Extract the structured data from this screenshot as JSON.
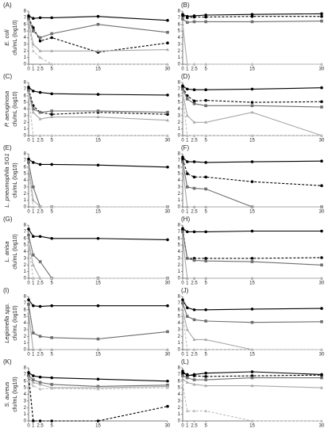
{
  "chart_data": [
    {
      "type": "line",
      "panel": "(A)",
      "species": "E. coli",
      "ylabel": "cfu/mL (log10)",
      "x": [
        0,
        1,
        2.5,
        5,
        15,
        30
      ],
      "xlim": [
        0,
        30
      ],
      "xticks": [
        0,
        1,
        2.5,
        5,
        15,
        30
      ],
      "ylim": [
        0,
        8
      ],
      "yticks": [
        0,
        1,
        2,
        3,
        4,
        5,
        6,
        7,
        8
      ],
      "series": [
        {
          "color": "#000000",
          "dashed": false,
          "marker": "circle",
          "values": [
            7.3,
            6.9,
            7.0,
            7.0,
            7.2,
            6.6
          ]
        },
        {
          "color": "#000000",
          "dashed": true,
          "marker": "circle",
          "values": [
            7.0,
            5.5,
            3.5,
            4.0,
            1.8,
            3.2
          ]
        },
        {
          "color": "#6e6e6e",
          "dashed": false,
          "marker": "square",
          "values": [
            6.8,
            5.0,
            4.0,
            4.6,
            6.0,
            4.8
          ]
        },
        {
          "color": "#a8a8a8",
          "dashed": false,
          "marker": "triangle",
          "values": [
            6.5,
            3.0,
            2.0,
            2.0,
            2.0,
            2.2
          ]
        },
        {
          "color": "#bdbdbd",
          "dashed": true,
          "marker": "triangle",
          "values": [
            6.3,
            2.0,
            1.0,
            0,
            0,
            0
          ]
        }
      ]
    },
    {
      "type": "line",
      "panel": "(B)",
      "x": [
        0,
        1,
        2.5,
        5,
        15,
        30
      ],
      "xlim": [
        0,
        30
      ],
      "xticks": [
        0,
        1,
        2.5,
        5,
        15,
        30
      ],
      "ylim": [
        0,
        8
      ],
      "yticks": [
        0,
        1,
        2,
        3,
        4,
        5,
        6,
        7,
        8
      ],
      "series": [
        {
          "color": "#000000",
          "dashed": false,
          "marker": "circle",
          "values": [
            7.5,
            7.2,
            7.3,
            7.4,
            7.5,
            7.6
          ]
        },
        {
          "color": "#000000",
          "dashed": true,
          "marker": "circle",
          "values": [
            7.3,
            7.0,
            7.1,
            7.1,
            7.2,
            7.2
          ]
        },
        {
          "color": "#6e6e6e",
          "dashed": false,
          "marker": "square",
          "values": [
            6.8,
            6.3,
            6.4,
            6.4,
            6.4,
            6.5
          ]
        },
        {
          "color": "#a8a8a8",
          "dashed": false,
          "marker": "triangle",
          "values": [
            6.0,
            0,
            0,
            0,
            0,
            0
          ]
        },
        {
          "color": "#bdbdbd",
          "dashed": true,
          "marker": "triangle",
          "values": [
            5.5,
            0,
            0,
            0,
            0,
            0
          ]
        }
      ]
    },
    {
      "type": "line",
      "panel": "(C)",
      "species": "P. aeruginosa",
      "ylabel": "cfu/mL (log10)",
      "x": [
        0,
        1,
        2.5,
        5,
        15,
        30
      ],
      "xlim": [
        0,
        30
      ],
      "xticks": [
        0,
        1,
        2.5,
        5,
        15,
        30
      ],
      "ylim": [
        0,
        8
      ],
      "yticks": [
        0,
        1,
        2,
        3,
        4,
        5,
        6,
        7,
        8
      ],
      "series": [
        {
          "color": "#000000",
          "dashed": false,
          "marker": "circle",
          "values": [
            7.3,
            6.7,
            6.5,
            6.3,
            6.2,
            6.1
          ]
        },
        {
          "color": "#000000",
          "dashed": true,
          "marker": "circle",
          "values": [
            7.0,
            4.5,
            3.5,
            3.2,
            3.5,
            3.2
          ]
        },
        {
          "color": "#6e6e6e",
          "dashed": false,
          "marker": "square",
          "values": [
            6.8,
            4.0,
            3.5,
            3.7,
            3.7,
            3.5
          ]
        },
        {
          "color": "#a8a8a8",
          "dashed": false,
          "marker": "triangle",
          "values": [
            6.5,
            3.5,
            2.5,
            2.8,
            2.8,
            2.3
          ]
        },
        {
          "color": "#bdbdbd",
          "dashed": true,
          "marker": "triangle",
          "values": [
            6.0,
            0,
            0,
            0,
            0,
            0
          ]
        }
      ]
    },
    {
      "type": "line",
      "panel": "(D)",
      "x": [
        0,
        1,
        2.5,
        5,
        15,
        30
      ],
      "xlim": [
        0,
        30
      ],
      "xticks": [
        0,
        1,
        2.5,
        5,
        15,
        30
      ],
      "ylim": [
        0,
        8
      ],
      "yticks": [
        0,
        1,
        2,
        3,
        4,
        5,
        6,
        7,
        8
      ],
      "series": [
        {
          "color": "#000000",
          "dashed": false,
          "marker": "circle",
          "values": [
            7.5,
            7.0,
            6.9,
            6.9,
            7.0,
            7.2
          ]
        },
        {
          "color": "#000000",
          "dashed": true,
          "marker": "circle",
          "values": [
            7.3,
            6.0,
            5.2,
            5.3,
            5.0,
            5.1
          ]
        },
        {
          "color": "#6e6e6e",
          "dashed": false,
          "marker": "square",
          "values": [
            7.0,
            5.5,
            4.8,
            4.5,
            4.5,
            4.3
          ]
        },
        {
          "color": "#a8a8a8",
          "dashed": false,
          "marker": "triangle",
          "values": [
            6.5,
            3.0,
            2.0,
            2.0,
            3.5,
            0
          ]
        },
        {
          "color": "#bdbdbd",
          "dashed": true,
          "marker": "triangle",
          "values": [
            6.0,
            0,
            0,
            0,
            0,
            0
          ]
        }
      ]
    },
    {
      "type": "line",
      "panel": "(E)",
      "species": "L. pneumophila SG1",
      "ylabel": "cfu/mL (log10)",
      "x": [
        0,
        1,
        2.5,
        5,
        15,
        30
      ],
      "xlim": [
        0,
        30
      ],
      "xticks": [
        0,
        1,
        2.5,
        5,
        15,
        30
      ],
      "ylim": [
        0,
        8
      ],
      "yticks": [
        0,
        1,
        2,
        3,
        4,
        5,
        6,
        7,
        8
      ],
      "series": [
        {
          "color": "#000000",
          "dashed": false,
          "marker": "circle",
          "values": [
            7.2,
            6.7,
            6.4,
            6.4,
            6.3,
            6.0
          ]
        },
        {
          "color": "#6e6e6e",
          "dashed": false,
          "marker": "square",
          "values": [
            6.7,
            3.0,
            0,
            0,
            0,
            0
          ]
        },
        {
          "color": "#a8a8a8",
          "dashed": false,
          "marker": "triangle",
          "values": [
            6.0,
            1.0,
            0,
            0,
            0,
            0
          ]
        },
        {
          "color": "#bdbdbd",
          "dashed": true,
          "marker": "triangle",
          "values": [
            5.5,
            0,
            0,
            0,
            0,
            0
          ]
        }
      ]
    },
    {
      "type": "line",
      "panel": "(F)",
      "x": [
        0,
        1,
        2.5,
        5,
        15,
        30
      ],
      "xlim": [
        0,
        30
      ],
      "xticks": [
        0,
        1,
        2.5,
        5,
        15,
        30
      ],
      "ylim": [
        0,
        8
      ],
      "yticks": [
        0,
        1,
        2,
        3,
        4,
        5,
        6,
        7,
        8
      ],
      "series": [
        {
          "color": "#000000",
          "dashed": false,
          "marker": "circle",
          "values": [
            7.5,
            6.8,
            6.8,
            6.7,
            6.8,
            6.9
          ]
        },
        {
          "color": "#000000",
          "dashed": true,
          "marker": "circle",
          "values": [
            7.2,
            5.0,
            4.5,
            4.5,
            3.8,
            3.2
          ]
        },
        {
          "color": "#6e6e6e",
          "dashed": false,
          "marker": "square",
          "values": [
            6.8,
            3.0,
            2.8,
            2.7,
            0,
            0
          ]
        },
        {
          "color": "#a8a8a8",
          "dashed": false,
          "marker": "triangle",
          "values": [
            6.0,
            0,
            0,
            0,
            0,
            0
          ]
        }
      ]
    },
    {
      "type": "line",
      "panel": "(G)",
      "species": "L. anisa",
      "ylabel": "cfu/mL (log10)",
      "x": [
        0,
        1,
        2.5,
        5,
        15,
        30
      ],
      "xlim": [
        0,
        30
      ],
      "xticks": [
        0,
        1,
        2.5,
        5,
        15,
        30
      ],
      "ylim": [
        0,
        8
      ],
      "yticks": [
        0,
        1,
        2,
        3,
        4,
        5,
        6,
        7,
        8
      ],
      "series": [
        {
          "color": "#000000",
          "dashed": false,
          "marker": "circle",
          "values": [
            7.4,
            6.3,
            6.3,
            6.0,
            6.0,
            5.8
          ]
        },
        {
          "color": "#6e6e6e",
          "dashed": false,
          "marker": "square",
          "values": [
            6.5,
            3.5,
            2.5,
            0,
            0,
            0
          ]
        },
        {
          "color": "#a8a8a8",
          "dashed": false,
          "marker": "triangle",
          "values": [
            5.5,
            2.0,
            0,
            0,
            0,
            0
          ]
        },
        {
          "color": "#bdbdbd",
          "dashed": true,
          "marker": "triangle",
          "values": [
            5.0,
            0,
            0,
            0,
            0,
            0
          ]
        }
      ]
    },
    {
      "type": "line",
      "panel": "(H)",
      "x": [
        0,
        1,
        2.5,
        5,
        15,
        30
      ],
      "xlim": [
        0,
        30
      ],
      "xticks": [
        0,
        1,
        2.5,
        5,
        15,
        30
      ],
      "ylim": [
        0,
        8
      ],
      "yticks": [
        0,
        1,
        2,
        3,
        4,
        5,
        6,
        7,
        8
      ],
      "series": [
        {
          "color": "#000000",
          "dashed": false,
          "marker": "circle",
          "values": [
            7.5,
            7.0,
            7.0,
            7.0,
            7.1,
            7.1
          ]
        },
        {
          "color": "#000000",
          "dashed": true,
          "marker": "circle",
          "values": [
            7.3,
            3.0,
            3.0,
            3.0,
            3.0,
            3.1
          ]
        },
        {
          "color": "#6e6e6e",
          "dashed": false,
          "marker": "square",
          "values": [
            7.0,
            3.0,
            2.7,
            2.6,
            2.5,
            2.0
          ]
        },
        {
          "color": "#a8a8a8",
          "dashed": false,
          "marker": "triangle",
          "values": [
            6.0,
            0,
            0,
            0,
            0,
            0
          ]
        }
      ]
    },
    {
      "type": "line",
      "panel": "(I)",
      "species": "Legionella spp.",
      "ylabel": "cfu/mL (log10)",
      "x": [
        0,
        1,
        2.5,
        5,
        15,
        30
      ],
      "xlim": [
        0,
        30
      ],
      "xticks": [
        0,
        1,
        2.5,
        5,
        15,
        30
      ],
      "ylim": [
        0,
        8
      ],
      "yticks": [
        0,
        1,
        2,
        3,
        4,
        5,
        6,
        7,
        8
      ],
      "series": [
        {
          "color": "#000000",
          "dashed": false,
          "marker": "circle",
          "values": [
            7.5,
            6.6,
            6.5,
            6.6,
            6.6,
            6.6
          ]
        },
        {
          "color": "#6e6e6e",
          "dashed": false,
          "marker": "square",
          "values": [
            6.8,
            2.5,
            2.0,
            1.8,
            1.6,
            2.7
          ]
        },
        {
          "color": "#a8a8a8",
          "dashed": false,
          "marker": "triangle",
          "values": [
            5.5,
            0,
            0,
            0,
            0,
            0
          ]
        }
      ]
    },
    {
      "type": "line",
      "panel": "(J)",
      "x": [
        0,
        1,
        2.5,
        5,
        15,
        30
      ],
      "xlim": [
        0,
        30
      ],
      "xticks": [
        0,
        1,
        2.5,
        5,
        15,
        30
      ],
      "ylim": [
        0,
        8
      ],
      "yticks": [
        0,
        1,
        2,
        3,
        4,
        5,
        6,
        7,
        8
      ],
      "series": [
        {
          "color": "#000000",
          "dashed": false,
          "marker": "circle",
          "values": [
            7.5,
            6.3,
            6.0,
            6.0,
            6.1,
            6.2
          ]
        },
        {
          "color": "#6e6e6e",
          "dashed": false,
          "marker": "square",
          "values": [
            7.0,
            5.0,
            4.5,
            4.3,
            4.1,
            4.2
          ]
        },
        {
          "color": "#a8a8a8",
          "dashed": false,
          "marker": "triangle",
          "values": [
            6.0,
            3.0,
            1.5,
            1.5,
            0,
            0
          ]
        },
        {
          "color": "#bdbdbd",
          "dashed": true,
          "marker": "triangle",
          "values": [
            5.5,
            0,
            0,
            0,
            0,
            0
          ]
        }
      ]
    },
    {
      "type": "line",
      "panel": "(K)",
      "species": "S. aureus",
      "ylabel": "cfu/mL (log10)",
      "x": [
        0,
        1,
        2.5,
        5,
        15,
        30
      ],
      "xlim": [
        0,
        30
      ],
      "xticks": [
        0,
        1,
        2.5,
        5,
        15,
        30
      ],
      "ylim": [
        0,
        8
      ],
      "yticks": [
        0,
        1,
        2,
        3,
        4,
        5,
        6,
        7,
        8
      ],
      "series": [
        {
          "color": "#000000",
          "dashed": false,
          "marker": "circle",
          "values": [
            7.3,
            6.8,
            6.6,
            6.5,
            6.3,
            6.0
          ]
        },
        {
          "color": "#000000",
          "dashed": true,
          "marker": "circle",
          "values": [
            6.9,
            0,
            0,
            0,
            0,
            2.2
          ]
        },
        {
          "color": "#6e6e6e",
          "dashed": false,
          "marker": "square",
          "values": [
            6.8,
            6.2,
            5.8,
            5.5,
            5.2,
            5.4
          ]
        },
        {
          "color": "#a8a8a8",
          "dashed": false,
          "marker": "triangle",
          "values": [
            6.5,
            5.8,
            5.5,
            5.0,
            5.0,
            5.2
          ]
        },
        {
          "color": "#bdbdbd",
          "dashed": true,
          "marker": "triangle",
          "values": [
            6.0,
            5.3,
            4.8,
            4.9,
            4.8,
            5.0
          ]
        }
      ]
    },
    {
      "type": "line",
      "panel": "(L)",
      "x": [
        0,
        1,
        2.5,
        5,
        15,
        30
      ],
      "xlim": [
        0,
        30
      ],
      "xticks": [
        0,
        1,
        2.5,
        5,
        15,
        30
      ],
      "ylim": [
        0,
        8
      ],
      "yticks": [
        0,
        1,
        2,
        3,
        4,
        5,
        6,
        7,
        8
      ],
      "series": [
        {
          "color": "#000000",
          "dashed": false,
          "marker": "circle",
          "values": [
            7.5,
            6.8,
            7.0,
            7.2,
            7.4,
            7.0
          ]
        },
        {
          "color": "#000000",
          "dashed": true,
          "marker": "circle",
          "values": [
            7.2,
            7.0,
            6.8,
            6.7,
            6.8,
            6.9
          ]
        },
        {
          "color": "#6e6e6e",
          "dashed": false,
          "marker": "square",
          "values": [
            6.8,
            6.5,
            6.2,
            6.2,
            6.5,
            6.5
          ]
        },
        {
          "color": "#a8a8a8",
          "dashed": false,
          "marker": "triangle",
          "values": [
            6.3,
            5.8,
            5.5,
            5.3,
            5.3,
            5.0
          ]
        },
        {
          "color": "#bdbdbd",
          "dashed": true,
          "marker": "triangle",
          "values": [
            5.5,
            1.5,
            1.5,
            1.5,
            0,
            0
          ]
        }
      ]
    }
  ]
}
